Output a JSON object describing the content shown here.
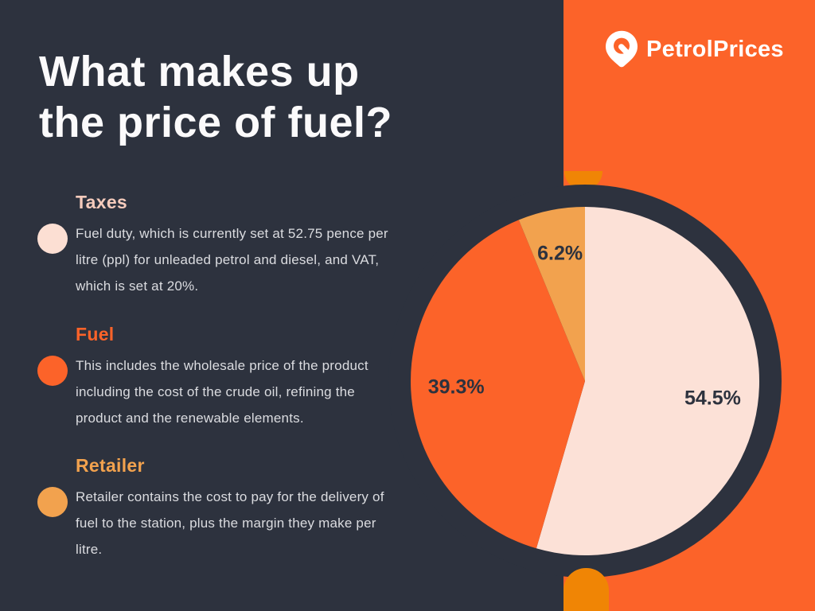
{
  "header": {
    "title_line1": "What makes up",
    "title_line2": "the price of fuel?"
  },
  "brand": {
    "name": "PetrolPrices"
  },
  "sections": [
    {
      "heading": "Taxes",
      "description": "Fuel duty, which is currently set at 52.75 pence per litre (ppl) for unleaded petrol and diesel, and VAT, which is set at 20%.",
      "heading_color": "#f5cbbc",
      "bullet_color": "#fcdfd3"
    },
    {
      "heading": "Fuel",
      "description": "This includes the wholesale price of the product including the cost of the crude oil, refining the product and the renewable elements.",
      "heading_color": "#fc6329",
      "bullet_color": "#fc6329"
    },
    {
      "heading": "Retailer",
      "description": "Retailer contains the cost to pay for the delivery of fuel to the station, plus the margin they make per litre.",
      "heading_color": "#f2a24e",
      "bullet_color": "#f2a24e"
    }
  ],
  "chart_data": {
    "type": "pie",
    "title": "What makes up the price of fuel?",
    "start_angle_deg": 0,
    "direction": "clockwise",
    "legend_position": "none",
    "label_color": "#2d323e",
    "slices": [
      {
        "label": "Taxes",
        "value": 54.5,
        "display": "54.5%",
        "color": "#fce1d7"
      },
      {
        "label": "Fuel",
        "value": 39.3,
        "display": "39.3%",
        "color": "#fc6329"
      },
      {
        "label": "Retailer",
        "value": 6.2,
        "display": "6.2%",
        "color": "#f2a24e"
      }
    ]
  },
  "colors": {
    "background": "#2d323e",
    "panel_orange": "#fc6329",
    "deep_orange": "#f08505",
    "title_text": "#fbfafb",
    "body_text": "#dbdce0",
    "logo_white": "#ffffff"
  }
}
